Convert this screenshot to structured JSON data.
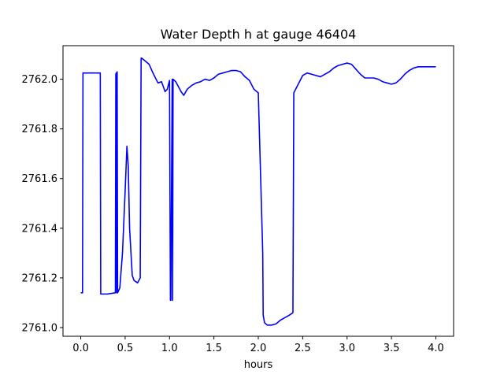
{
  "chart_data": {
    "type": "line",
    "title": "Water Depth h at gauge 46404",
    "xlabel": "hours",
    "ylabel": "",
    "xlim": [
      -0.2,
      4.2
    ],
    "ylim": [
      2760.965,
      2762.135
    ],
    "xticks": [
      0.0,
      0.5,
      1.0,
      1.5,
      2.0,
      2.5,
      3.0,
      3.5,
      4.0
    ],
    "xtick_labels": [
      "0.0",
      "0.5",
      "1.0",
      "1.5",
      "2.0",
      "2.5",
      "3.0",
      "3.5",
      "4.0"
    ],
    "yticks": [
      2761.0,
      2761.2,
      2761.4,
      2761.6,
      2761.8,
      2762.0
    ],
    "ytick_labels": [
      "2761.0",
      "2761.2",
      "2761.4",
      "2761.6",
      "2761.8",
      "2762.0"
    ],
    "grid": false,
    "series": [
      {
        "color": "#0000ff",
        "x": [
          0.0,
          0.02,
          0.025,
          0.22,
          0.225,
          0.3,
          0.39,
          0.395,
          0.4,
          0.405,
          0.41,
          0.415,
          0.44,
          0.47,
          0.5,
          0.52,
          0.535,
          0.55,
          0.58,
          0.6,
          0.64,
          0.67,
          0.68,
          0.685,
          0.72,
          0.77,
          0.82,
          0.87,
          0.91,
          0.95,
          0.975,
          1.0,
          1.01,
          1.015,
          1.03,
          1.035,
          1.04,
          1.07,
          1.1,
          1.13,
          1.16,
          1.2,
          1.25,
          1.3,
          1.35,
          1.4,
          1.45,
          1.5,
          1.55,
          1.6,
          1.65,
          1.7,
          1.75,
          1.8,
          1.85,
          1.9,
          1.95,
          2.0,
          2.05,
          2.055,
          2.07,
          2.1,
          2.15,
          2.2,
          2.25,
          2.3,
          2.35,
          2.39,
          2.4,
          2.45,
          2.5,
          2.55,
          2.6,
          2.65,
          2.7,
          2.75,
          2.8,
          2.85,
          2.9,
          2.95,
          3.0,
          3.05,
          3.1,
          3.15,
          3.2,
          3.25,
          3.3,
          3.35,
          3.4,
          3.45,
          3.5,
          3.55,
          3.6,
          3.65,
          3.7,
          3.75,
          3.8,
          3.85,
          3.9,
          3.95,
          4.0
        ],
        "y": [
          2761.14,
          2761.14,
          2762.025,
          2762.025,
          2761.135,
          2761.135,
          2761.14,
          2762.02,
          2762.025,
          2761.14,
          2762.03,
          2761.14,
          2761.16,
          2761.3,
          2761.55,
          2761.73,
          2761.65,
          2761.4,
          2761.21,
          2761.19,
          2761.18,
          2761.2,
          2762.085,
          2762.085,
          2762.075,
          2762.06,
          2762.02,
          2761.985,
          2761.99,
          2761.95,
          2761.96,
          2761.995,
          2761.11,
          2761.11,
          2762.0,
          2761.11,
          2762.0,
          2761.99,
          2761.97,
          2761.95,
          2761.935,
          2761.96,
          2761.975,
          2761.985,
          2761.99,
          2762.0,
          2761.995,
          2762.005,
          2762.02,
          2762.025,
          2762.03,
          2762.035,
          2762.035,
          2762.03,
          2762.01,
          2761.995,
          2761.96,
          2761.945,
          2761.3,
          2761.05,
          2761.02,
          2761.01,
          2761.01,
          2761.015,
          2761.03,
          2761.04,
          2761.05,
          2761.06,
          2761.945,
          2761.98,
          2762.015,
          2762.025,
          2762.02,
          2762.015,
          2762.01,
          2762.02,
          2762.03,
          2762.045,
          2762.055,
          2762.06,
          2762.065,
          2762.06,
          2762.04,
          2762.02,
          2762.005,
          2762.005,
          2762.005,
          2762.0,
          2761.99,
          2761.985,
          2761.98,
          2761.985,
          2762.0,
          2762.02,
          2762.035,
          2762.045,
          2762.05,
          2762.05,
          2762.05,
          2762.05,
          2762.05
        ]
      }
    ]
  }
}
